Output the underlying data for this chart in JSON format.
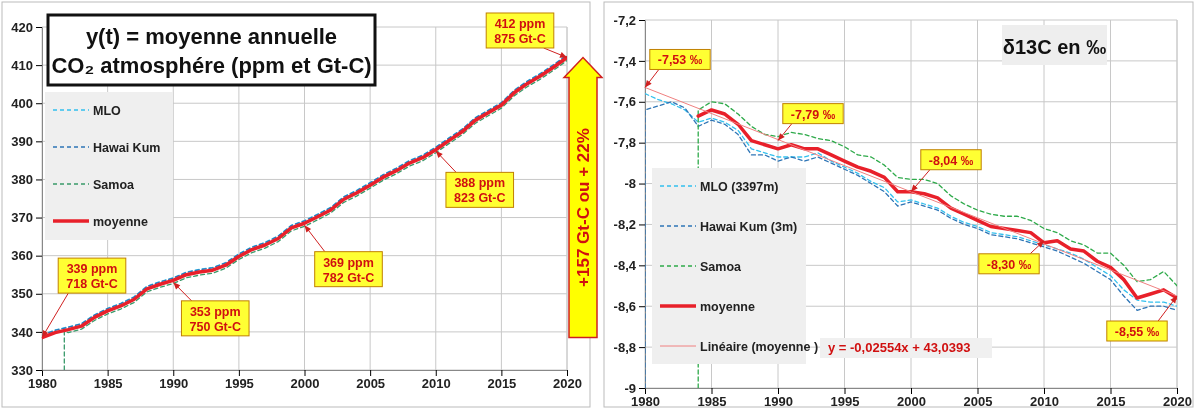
{
  "chart_data": [
    {
      "type": "line",
      "title": "y(t) = moyenne annuelle\nCO₂ atmosphére (ppm et Gt-C)",
      "x": [
        1980,
        1981,
        1982,
        1983,
        1984,
        1985,
        1986,
        1987,
        1988,
        1989,
        1990,
        1991,
        1992,
        1993,
        1994,
        1995,
        1996,
        1997,
        1998,
        1999,
        2000,
        2001,
        2002,
        2003,
        2004,
        2005,
        2006,
        2007,
        2008,
        2009,
        2010,
        2011,
        2012,
        2013,
        2014,
        2015,
        2016,
        2017,
        2018,
        2019,
        2020
      ],
      "series": [
        {
          "name": "MLO",
          "color": "#33c0ee",
          "line_style": "dashed",
          "values": [
            339.2,
            340.5,
            341.3,
            342.2,
            344.5,
            346.2,
            347.5,
            349.2,
            352.0,
            353.2,
            354.2,
            355.7,
            356.4,
            356.9,
            358.2,
            360.5,
            362.3,
            363.5,
            365.2,
            368.0,
            369.2,
            370.9,
            372.7,
            375.5,
            377.2,
            379.2,
            381.3,
            383.0,
            385.0,
            386.4,
            388.5,
            390.9,
            393.2,
            396.2,
            398.2,
            400.2,
            403.5,
            405.9,
            407.9,
            410.2,
            412.7
          ]
        },
        {
          "name": "Hawai Kum",
          "color": "#2e75b6",
          "line_style": "dashed",
          "values": [
            339.1,
            340.4,
            341.2,
            342.1,
            344.4,
            346.1,
            347.4,
            349.1,
            351.9,
            353.1,
            354.1,
            355.6,
            356.3,
            356.8,
            358.1,
            360.4,
            362.2,
            363.4,
            365.1,
            367.9,
            369.1,
            370.8,
            372.6,
            375.4,
            377.1,
            379.1,
            381.2,
            382.9,
            384.9,
            386.3,
            388.4,
            390.8,
            393.1,
            396.1,
            398.1,
            400.1,
            403.4,
            405.8,
            407.8,
            410.1,
            412.6
          ]
        },
        {
          "name": "Samoa",
          "color": "#3a9a6a",
          "line_style": "dashed",
          "x": [
            1981.7,
            1981.7,
            1982,
            1983,
            1984,
            1985,
            1986,
            1987,
            1988,
            1989,
            1990,
            1991,
            1992,
            1993,
            1994,
            1995,
            1996,
            1997,
            1998,
            1999,
            2000,
            2001,
            2002,
            2003,
            2004,
            2005,
            2006,
            2007,
            2008,
            2009,
            2010,
            2011,
            2012,
            2013,
            2014,
            2015,
            2016,
            2017,
            2018,
            2019,
            2020
          ],
          "values": [
            330,
            340.2,
            339.8,
            340.7,
            343.0,
            344.7,
            346.0,
            347.7,
            350.5,
            351.7,
            352.7,
            354.2,
            354.9,
            355.4,
            356.7,
            359.0,
            360.8,
            362.0,
            363.7,
            366.5,
            367.7,
            369.4,
            371.2,
            374.0,
            375.7,
            377.7,
            379.8,
            381.5,
            383.5,
            384.9,
            387.0,
            389.4,
            391.7,
            394.7,
            396.7,
            398.7,
            402.0,
            404.4,
            406.4,
            408.7,
            411.2
          ]
        },
        {
          "name": "moyenne",
          "color": "#e8202a",
          "line_style": "solid",
          "values": [
            338.5,
            339.8,
            340.6,
            341.5,
            343.8,
            345.5,
            346.8,
            348.5,
            351.3,
            352.5,
            353.5,
            355.0,
            355.7,
            356.2,
            357.5,
            359.8,
            361.6,
            362.8,
            364.5,
            367.3,
            368.5,
            370.2,
            372.0,
            374.8,
            376.5,
            378.5,
            380.6,
            382.3,
            384.3,
            385.7,
            387.8,
            390.2,
            392.5,
            395.5,
            397.5,
            399.5,
            402.8,
            405.2,
            407.2,
            409.5,
            412.0
          ]
        }
      ],
      "xlim": [
        1980,
        2020
      ],
      "xticks": [
        1980,
        1985,
        1990,
        1995,
        2000,
        2005,
        2010,
        2015,
        2020
      ],
      "ylim": [
        330,
        420
      ],
      "yticks": [
        330,
        340,
        350,
        360,
        370,
        380,
        390,
        400,
        410,
        420
      ],
      "grid": true,
      "legend": "top left",
      "marker": "none",
      "annotations": [
        {
          "text": "339 ppm\n718 Gt-C",
          "x": 1980,
          "y": 338.5
        },
        {
          "text": "353 ppm\n750 Gt-C",
          "x": 1990,
          "y": 353
        },
        {
          "text": "369 ppm\n782 Gt-C",
          "x": 2000,
          "y": 368
        },
        {
          "text": "388 ppm\n823 Gt-C",
          "x": 2010,
          "y": 387.5
        },
        {
          "text": "412 ppm\n875 Gt-C",
          "x": 2020,
          "y": 412
        },
        "+157 Gt-C ou + 22%"
      ]
    },
    {
      "type": "line",
      "title": "δ13C en ‰",
      "x": [
        1984,
        1985,
        1986,
        1987,
        1988,
        1989,
        1990,
        1991,
        1992,
        1993,
        1994,
        1995,
        1996,
        1997,
        1998,
        1999,
        2000,
        2001,
        2002,
        2003,
        2004,
        2005,
        2006,
        2007,
        2008,
        2009,
        2010,
        2011,
        2012,
        2013,
        2014,
        2015,
        2016,
        2017,
        2018,
        2019,
        2020
      ],
      "series": [
        {
          "name": "MLO (3397m)",
          "color": "#33c0ee",
          "line_style": "dashed",
          "x": [
            1980,
            1981,
            1982,
            1983,
            1984,
            1985,
            1986,
            1987,
            1988,
            1989,
            1990,
            1991,
            1992,
            1993,
            1994,
            1995,
            1996,
            1997,
            1998,
            1999,
            2000,
            2001,
            2002,
            2003,
            2004,
            2005,
            2006,
            2007,
            2008,
            2009,
            2010,
            2011,
            2012,
            2013,
            2014,
            2015,
            2016,
            2017,
            2018,
            2019,
            2020
          ],
          "values": [
            -7.56,
            -7.59,
            -7.61,
            -7.64,
            -7.7,
            -7.68,
            -7.7,
            -7.74,
            -7.83,
            -7.85,
            -7.87,
            -7.87,
            -7.87,
            -7.85,
            -7.89,
            -7.92,
            -7.95,
            -7.99,
            -8.02,
            -8.09,
            -8.08,
            -8.1,
            -8.12,
            -8.16,
            -8.19,
            -8.21,
            -8.24,
            -8.25,
            -8.26,
            -8.28,
            -8.3,
            -8.32,
            -8.34,
            -8.37,
            -8.41,
            -8.45,
            -8.52,
            -8.57,
            -8.58,
            -8.58,
            -8.6
          ]
        },
        {
          "name": "Hawai Kum (3m)",
          "color": "#2e75b6",
          "line_style": "dashed",
          "x": [
            1980,
            1980,
            1981,
            1982,
            1983,
            1984,
            1985,
            1986,
            1987,
            1988,
            1989,
            1990,
            1991,
            1992,
            1993,
            1994,
            1995,
            1996,
            1997,
            1998,
            1999,
            2000,
            2001,
            2002,
            2003,
            2004,
            2005,
            2006,
            2007,
            2008,
            2009,
            2010,
            2011,
            2012,
            2013,
            2014,
            2015,
            2016,
            2017,
            2018,
            2019,
            2020
          ],
          "values": [
            -9,
            -7.64,
            -7.62,
            -7.6,
            -7.63,
            -7.72,
            -7.69,
            -7.71,
            -7.76,
            -7.86,
            -7.86,
            -7.89,
            -7.87,
            -7.89,
            -7.87,
            -7.9,
            -7.93,
            -7.96,
            -8.0,
            -8.04,
            -8.11,
            -8.09,
            -8.11,
            -8.13,
            -8.17,
            -8.2,
            -8.22,
            -8.25,
            -8.26,
            -8.27,
            -8.29,
            -8.31,
            -8.33,
            -8.36,
            -8.39,
            -8.43,
            -8.47,
            -8.55,
            -8.62,
            -8.6,
            -8.6,
            -8.62
          ]
        },
        {
          "name": "Samoa",
          "color": "#2eaa4a",
          "line_style": "dashed",
          "x": [
            1984,
            1984,
            1985,
            1986,
            1987,
            1988,
            1989,
            1990,
            1991,
            1992,
            1993,
            1994,
            1995,
            1996,
            1997,
            1998,
            1999,
            2000,
            2001,
            2002,
            2003,
            2004,
            2005,
            2006,
            2007,
            2008,
            2009,
            2010,
            2011,
            2012,
            2013,
            2014,
            2015,
            2016,
            2017,
            2018,
            2019,
            2020
          ],
          "values": [
            -9,
            -7.64,
            -7.6,
            -7.61,
            -7.66,
            -7.72,
            -7.76,
            -7.77,
            -7.75,
            -7.76,
            -7.78,
            -7.79,
            -7.82,
            -7.86,
            -7.87,
            -7.91,
            -7.97,
            -7.98,
            -7.98,
            -8.0,
            -8.06,
            -8.1,
            -8.13,
            -8.15,
            -8.16,
            -8.16,
            -8.18,
            -8.22,
            -8.24,
            -8.28,
            -8.3,
            -8.34,
            -8.34,
            -8.4,
            -8.48,
            -8.47,
            -8.43,
            -8.5
          ]
        },
        {
          "name": "moyenne",
          "color": "#e8202a",
          "line_style": "solid",
          "values": [
            -7.67,
            -7.64,
            -7.66,
            -7.71,
            -7.79,
            -7.81,
            -7.83,
            -7.81,
            -7.83,
            -7.83,
            -7.86,
            -7.89,
            -7.92,
            -7.94,
            -7.97,
            -8.04,
            -8.04,
            -8.05,
            -8.07,
            -8.12,
            -8.15,
            -8.18,
            -8.21,
            -8.22,
            -8.23,
            -8.24,
            -8.29,
            -8.28,
            -8.32,
            -8.33,
            -8.38,
            -8.41,
            -8.47,
            -8.56,
            -8.54,
            -8.52,
            -8.56
          ]
        },
        {
          "name": "Linéaire (moyenne )",
          "color": "#f08080",
          "line_style": "solid",
          "x": [
            1980,
            2020
          ],
          "values": [
            -7.53,
            -8.55
          ]
        }
      ],
      "xlim": [
        1980,
        2020
      ],
      "xticks": [
        1980,
        1985,
        1990,
        1995,
        2000,
        2005,
        2010,
        2015,
        2020
      ],
      "ylim": [
        -9,
        -7.2
      ],
      "yticks": [
        -9,
        {
          "value": -8.8,
          "label": "-8,8"
        },
        {
          "value": -8.6,
          "label": "-8,6"
        },
        {
          "value": -8.4,
          "label": "-8,4"
        },
        {
          "value": -8.2,
          "label": "-8,2"
        },
        -8,
        {
          "value": -7.8,
          "label": "-7,8"
        },
        {
          "value": -7.6,
          "label": "-7,6"
        },
        {
          "value": -7.4,
          "label": "-7,4"
        },
        {
          "value": -7.2,
          "label": "-7,2"
        }
      ],
      "grid": true,
      "legend": "left",
      "marker": "none",
      "annotations": [
        {
          "text": "-7,53 ‰",
          "x": 1980,
          "y": -7.53
        },
        {
          "text": "-7,79 ‰",
          "x": 1990,
          "y": -7.79
        },
        {
          "text": "-8,04 ‰",
          "x": 2000,
          "y": -8.04
        },
        {
          "text": "-8,30 ‰",
          "x": 2010,
          "y": -8.28
        },
        {
          "text": "-8,55 ‰",
          "x": 2020,
          "y": -8.55
        },
        "y = -0,02554x + 43,0393"
      ]
    }
  ]
}
